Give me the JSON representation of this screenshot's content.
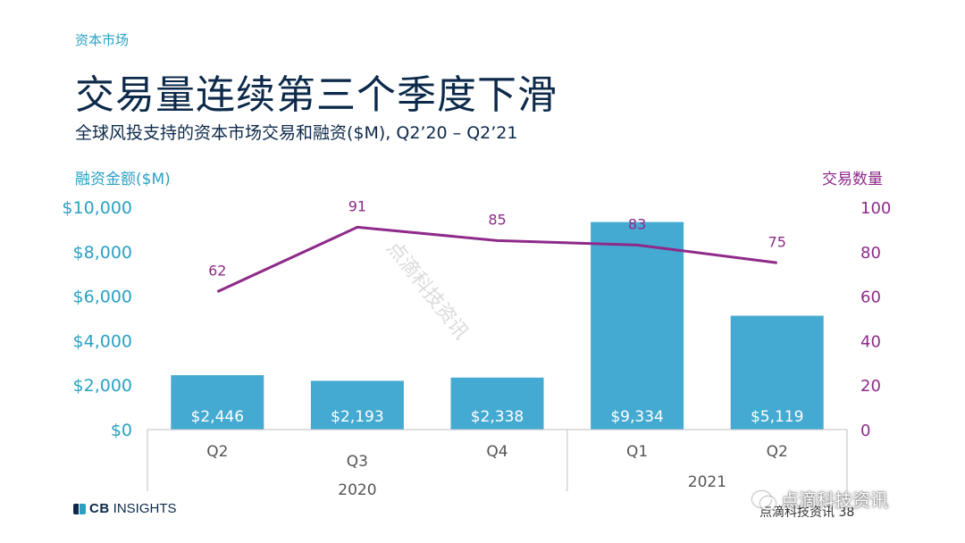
{
  "header": {
    "section": "资本市场",
    "title": "交易量连续第三个季度下滑",
    "subtitle": "全球风投支持的资本市场交易和融资($M), Q2’20 – Q2’21"
  },
  "chart_data": {
    "type": "bar",
    "categories": [
      "Q2",
      "Q3",
      "Q4",
      "Q1",
      "Q2"
    ],
    "category_groups": [
      {
        "label": "2020",
        "count": 3
      },
      {
        "label": "2021",
        "count": 2
      }
    ],
    "series": [
      {
        "type": "bar",
        "axis": "left",
        "values": [
          2446,
          2193,
          2338,
          9334,
          5119
        ],
        "data_labels": [
          "$2,446",
          "$2,193",
          "$2,338",
          "$9,334",
          "$5,119"
        ],
        "color": "#45aad1"
      },
      {
        "type": "line",
        "axis": "right",
        "values": [
          62,
          91,
          85,
          83,
          75
        ],
        "data_labels": [
          "62",
          "91",
          "85",
          "83",
          "75"
        ],
        "color": "#8e2a8a"
      }
    ],
    "left_axis": {
      "label": "融资金额($M)",
      "range": [
        0,
        10000
      ],
      "ticks": [
        "$0",
        "$2,000",
        "$4,000",
        "$6,000",
        "$8,000",
        "$10,000"
      ],
      "color": "#2aa1c3"
    },
    "right_axis": {
      "label": "交易数量",
      "range": [
        0,
        100
      ],
      "ticks": [
        "0",
        "20",
        "40",
        "60",
        "80",
        "100"
      ],
      "color": "#8e2a8a"
    },
    "grid": false
  },
  "footer": {
    "brand_prefix": "CB",
    "brand_suffix": "INSIGHTS",
    "source_text": "点滴科技资讯",
    "page_number": "38",
    "badge_text": "点滴科技资讯",
    "diagonal_watermark": "点滴科技资讯"
  },
  "colors": {
    "title": "#0d2a4a",
    "accent_blue": "#2aa1c3",
    "bar": "#45aad1",
    "line": "#8e2a8a"
  }
}
